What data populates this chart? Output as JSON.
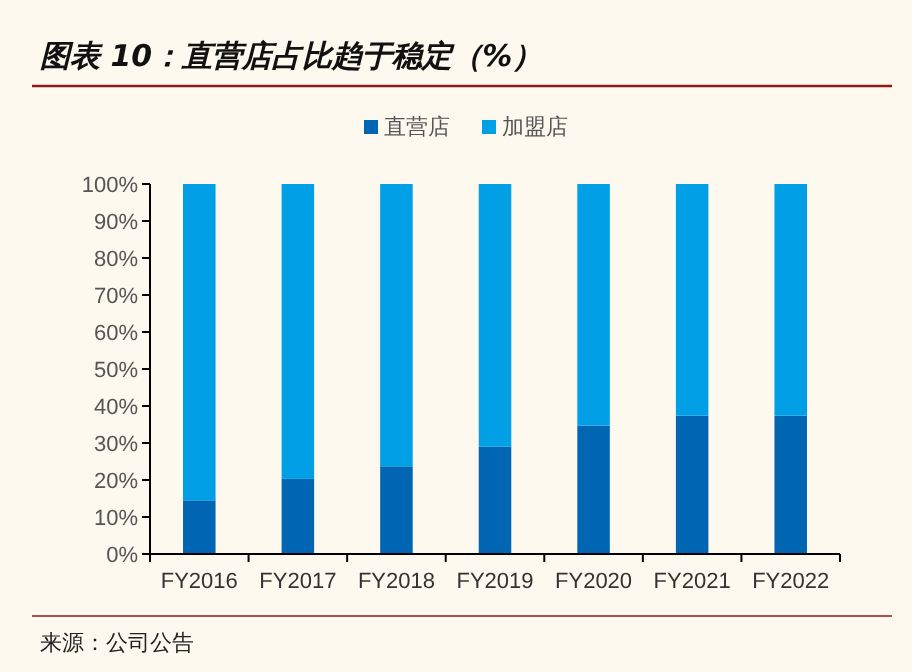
{
  "chart_data": {
    "type": "bar",
    "stacked": true,
    "title": "图表 10：直营店占比趋于稳定（%）",
    "categories": [
      "FY2016",
      "FY2017",
      "FY2018",
      "FY2019",
      "FY2020",
      "FY2021",
      "FY2022"
    ],
    "series": [
      {
        "name": "直营店",
        "color": "#0066b3",
        "values": [
          14.5,
          20.3,
          23.7,
          29,
          34.7,
          37.4,
          37.4
        ]
      },
      {
        "name": "加盟店",
        "color": "#009fe6",
        "values": [
          85.5,
          79.7,
          76.3,
          71,
          65.3,
          62.6,
          62.6
        ]
      }
    ],
    "ylim": [
      0,
      100
    ],
    "yticks": [
      {
        "value": 0,
        "label": "0%"
      },
      {
        "value": 10,
        "label": "10%"
      },
      {
        "value": 20,
        "label": "20%"
      },
      {
        "value": 30,
        "label": "30%"
      },
      {
        "value": 40,
        "label": "40%"
      },
      {
        "value": 50,
        "label": "50%"
      },
      {
        "value": 60,
        "label": "60%"
      },
      {
        "value": 70,
        "label": "70%"
      },
      {
        "value": 80,
        "label": "80%"
      },
      {
        "value": 90,
        "label": "90%"
      },
      {
        "value": 100,
        "label": "100%"
      }
    ],
    "legend": "top",
    "annotations": [
      "来源：公司公告"
    ]
  }
}
